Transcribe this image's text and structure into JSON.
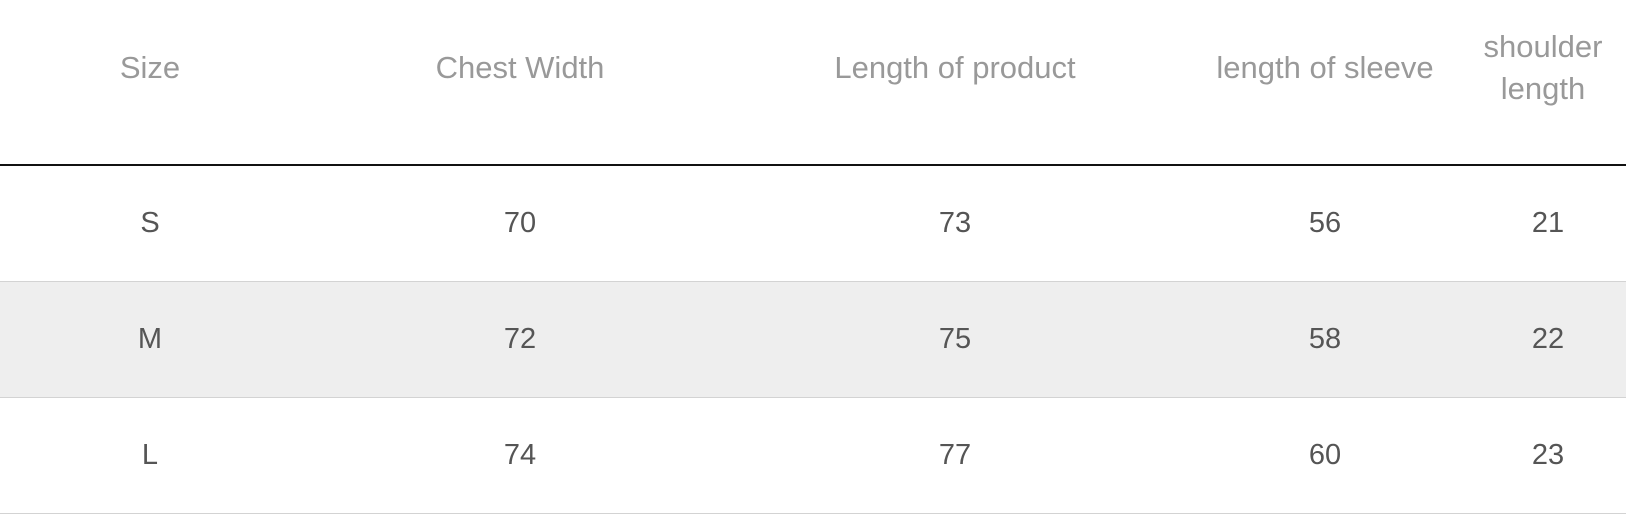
{
  "table": {
    "headers": [
      "Size",
      "Chest Width",
      "Length of product",
      "length of sleeve",
      "shoulder length"
    ],
    "rows": [
      [
        "S",
        "70",
        "73",
        "56",
        "21"
      ],
      [
        "M",
        "72",
        "75",
        "58",
        "22"
      ],
      [
        "L",
        "74",
        "77",
        "60",
        "23"
      ]
    ]
  },
  "colors": {
    "header_text": "#999999",
    "cell_text": "#555555",
    "alt_row_bg": "#eeeeee",
    "header_rule": "#111111",
    "row_rule": "#d3d3d3"
  }
}
